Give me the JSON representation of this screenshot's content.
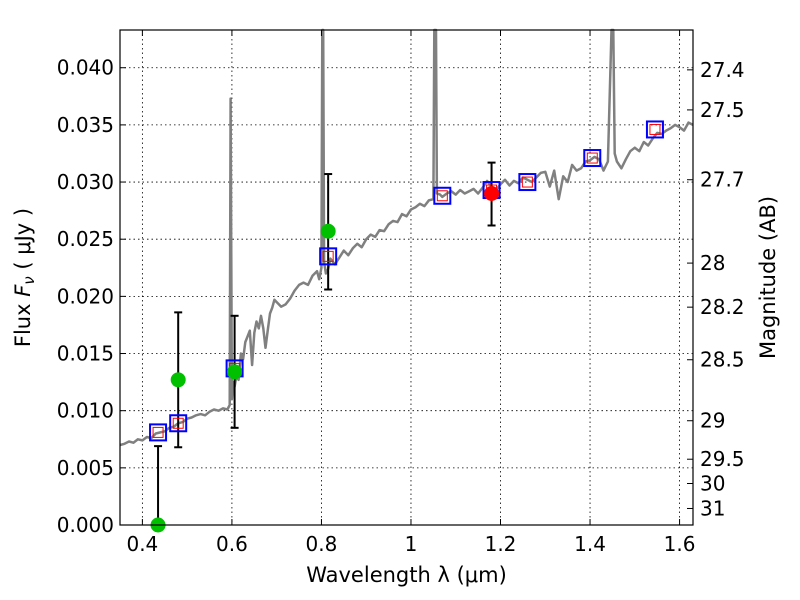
{
  "chart_data": {
    "type": "scatter",
    "xlabel": "Wavelength  λ (μm)",
    "ylabel_main": "Flux  ",
    "ylabel_symbol": "F",
    "ylabel_subscript": "ν",
    "ylabel_unit": "  ( μJy )",
    "y2label": "Magnitude (AB)",
    "xlim": [
      0.35,
      1.63
    ],
    "ylim": [
      0.0,
      0.0433
    ],
    "grid": true,
    "x_ticks": [
      {
        "v": 0.4,
        "label": "0.4"
      },
      {
        "v": 0.6,
        "label": "0.6"
      },
      {
        "v": 0.8,
        "label": "0.8"
      },
      {
        "v": 1.0,
        "label": "1"
      },
      {
        "v": 1.2,
        "label": "1.2"
      },
      {
        "v": 1.4,
        "label": "1.4"
      },
      {
        "v": 1.6,
        "label": "1.6"
      }
    ],
    "y_ticks": [
      {
        "v": 0.0,
        "label": "0.000"
      },
      {
        "v": 0.005,
        "label": "0.005"
      },
      {
        "v": 0.01,
        "label": "0.010"
      },
      {
        "v": 0.015,
        "label": "0.015"
      },
      {
        "v": 0.02,
        "label": "0.020"
      },
      {
        "v": 0.025,
        "label": "0.025"
      },
      {
        "v": 0.03,
        "label": "0.030"
      },
      {
        "v": 0.035,
        "label": "0.035"
      },
      {
        "v": 0.04,
        "label": "0.040"
      }
    ],
    "mag_ticks": [
      {
        "mag": 27.4,
        "label": "27.4"
      },
      {
        "mag": 27.5,
        "label": "27.5"
      },
      {
        "mag": 27.7,
        "label": "27.7"
      },
      {
        "mag": 28.0,
        "label": "28"
      },
      {
        "mag": 28.2,
        "label": "28.2"
      },
      {
        "mag": 28.5,
        "label": "28.5"
      },
      {
        "mag": 29.0,
        "label": "29"
      },
      {
        "mag": 29.5,
        "label": "29.5"
      },
      {
        "mag": 30.0,
        "label": "30"
      },
      {
        "mag": 31.0,
        "label": "31"
      }
    ],
    "colors": {
      "model": "#808080",
      "model_phot": "#0000ff",
      "model_phot_inner": "#ff0000",
      "green": "#00c000",
      "red": "#ff0000",
      "errorbar": "#000000"
    },
    "model_spectrum": [
      [
        0.35,
        0.007
      ],
      [
        0.36,
        0.0071
      ],
      [
        0.37,
        0.0073
      ],
      [
        0.38,
        0.0072
      ],
      [
        0.39,
        0.0075
      ],
      [
        0.4,
        0.0074
      ],
      [
        0.41,
        0.0077
      ],
      [
        0.42,
        0.0076
      ],
      [
        0.43,
        0.008
      ],
      [
        0.44,
        0.0081
      ],
      [
        0.45,
        0.0082
      ],
      [
        0.46,
        0.0085
      ],
      [
        0.47,
        0.0086
      ],
      [
        0.48,
        0.0089
      ],
      [
        0.49,
        0.009
      ],
      [
        0.5,
        0.0093
      ],
      [
        0.51,
        0.0094
      ],
      [
        0.52,
        0.0096
      ],
      [
        0.53,
        0.0097
      ],
      [
        0.54,
        0.0096
      ],
      [
        0.55,
        0.0099
      ],
      [
        0.56,
        0.0101
      ],
      [
        0.57,
        0.01
      ],
      [
        0.58,
        0.0102
      ],
      [
        0.59,
        0.0101
      ],
      [
        0.595,
        0.0105
      ],
      [
        0.597,
        0.0373
      ],
      [
        0.6,
        0.011
      ],
      [
        0.603,
        0.0125
      ],
      [
        0.606,
        0.0121
      ],
      [
        0.61,
        0.013
      ],
      [
        0.615,
        0.0127
      ],
      [
        0.62,
        0.015
      ],
      [
        0.625,
        0.0145
      ],
      [
        0.63,
        0.016
      ],
      [
        0.635,
        0.0165
      ],
      [
        0.64,
        0.017
      ],
      [
        0.645,
        0.014
      ],
      [
        0.65,
        0.0168
      ],
      [
        0.655,
        0.0178
      ],
      [
        0.66,
        0.0172
      ],
      [
        0.665,
        0.0183
      ],
      [
        0.67,
        0.0172
      ],
      [
        0.675,
        0.0155
      ],
      [
        0.68,
        0.017
      ],
      [
        0.685,
        0.0185
      ],
      [
        0.69,
        0.019
      ],
      [
        0.695,
        0.0197
      ],
      [
        0.7,
        0.0195
      ],
      [
        0.71,
        0.0191
      ],
      [
        0.72,
        0.0193
      ],
      [
        0.73,
        0.0198
      ],
      [
        0.74,
        0.0205
      ],
      [
        0.75,
        0.021
      ],
      [
        0.76,
        0.0212
      ],
      [
        0.77,
        0.021
      ],
      [
        0.78,
        0.0218
      ],
      [
        0.79,
        0.0222
      ],
      [
        0.795,
        0.0215
      ],
      [
        0.8,
        0.0225
      ],
      [
        0.802,
        0.0433
      ],
      [
        0.804,
        0.0433
      ],
      [
        0.806,
        0.023
      ],
      [
        0.81,
        0.022
      ],
      [
        0.815,
        0.0224
      ],
      [
        0.82,
        0.0233
      ],
      [
        0.83,
        0.0228
      ],
      [
        0.84,
        0.0234
      ],
      [
        0.85,
        0.024
      ],
      [
        0.86,
        0.0236
      ],
      [
        0.87,
        0.0242
      ],
      [
        0.88,
        0.0246
      ],
      [
        0.89,
        0.0243
      ],
      [
        0.9,
        0.025
      ],
      [
        0.91,
        0.0254
      ],
      [
        0.92,
        0.0252
      ],
      [
        0.93,
        0.0258
      ],
      [
        0.94,
        0.0257
      ],
      [
        0.95,
        0.0263
      ],
      [
        0.96,
        0.0266
      ],
      [
        0.97,
        0.0265
      ],
      [
        0.98,
        0.0272
      ],
      [
        0.99,
        0.027
      ],
      [
        1.0,
        0.0276
      ],
      [
        1.01,
        0.0278
      ],
      [
        1.02,
        0.0281
      ],
      [
        1.03,
        0.0279
      ],
      [
        1.04,
        0.0284
      ],
      [
        1.05,
        0.0285
      ],
      [
        1.052,
        0.0433
      ],
      [
        1.056,
        0.0433
      ],
      [
        1.058,
        0.029
      ],
      [
        1.065,
        0.0289
      ],
      [
        1.07,
        0.0287
      ],
      [
        1.08,
        0.029
      ],
      [
        1.09,
        0.0292
      ],
      [
        1.1,
        0.0289
      ],
      [
        1.11,
        0.0293
      ],
      [
        1.12,
        0.029
      ],
      [
        1.13,
        0.0292
      ],
      [
        1.14,
        0.0294
      ],
      [
        1.15,
        0.029
      ],
      [
        1.16,
        0.0295
      ],
      [
        1.17,
        0.0301
      ],
      [
        1.18,
        0.0296
      ],
      [
        1.19,
        0.0293
      ],
      [
        1.2,
        0.0298
      ],
      [
        1.21,
        0.0302
      ],
      [
        1.22,
        0.0297
      ],
      [
        1.23,
        0.0301
      ],
      [
        1.24,
        0.0299
      ],
      [
        1.25,
        0.0304
      ],
      [
        1.26,
        0.0302
      ],
      [
        1.27,
        0.03
      ],
      [
        1.28,
        0.0304
      ],
      [
        1.29,
        0.0308
      ],
      [
        1.3,
        0.0309
      ],
      [
        1.31,
        0.0296
      ],
      [
        1.32,
        0.031
      ],
      [
        1.33,
        0.0285
      ],
      [
        1.34,
        0.0305
      ],
      [
        1.35,
        0.03
      ],
      [
        1.36,
        0.0315
      ],
      [
        1.37,
        0.031
      ],
      [
        1.38,
        0.0312
      ],
      [
        1.39,
        0.0318
      ],
      [
        1.4,
        0.0319
      ],
      [
        1.41,
        0.0322
      ],
      [
        1.42,
        0.032
      ],
      [
        1.43,
        0.031
      ],
      [
        1.44,
        0.0318
      ],
      [
        1.448,
        0.0433
      ],
      [
        1.452,
        0.0433
      ],
      [
        1.455,
        0.0325
      ],
      [
        1.46,
        0.0318
      ],
      [
        1.47,
        0.0312
      ],
      [
        1.48,
        0.032
      ],
      [
        1.49,
        0.0327
      ],
      [
        1.5,
        0.033
      ],
      [
        1.51,
        0.0327
      ],
      [
        1.52,
        0.0335
      ],
      [
        1.53,
        0.0332
      ],
      [
        1.54,
        0.0338
      ],
      [
        1.55,
        0.0343
      ],
      [
        1.56,
        0.0342
      ],
      [
        1.57,
        0.0345
      ],
      [
        1.58,
        0.0347
      ],
      [
        1.59,
        0.035
      ],
      [
        1.6,
        0.0348
      ],
      [
        1.61,
        0.0345
      ],
      [
        1.62,
        0.0352
      ],
      [
        1.63,
        0.035
      ]
    ],
    "model_photometry": [
      {
        "x": 0.435,
        "y": 0.0081
      },
      {
        "x": 0.48,
        "y": 0.0089
      },
      {
        "x": 0.606,
        "y": 0.0137
      },
      {
        "x": 0.815,
        "y": 0.0235
      },
      {
        "x": 1.07,
        "y": 0.0288
      },
      {
        "x": 1.18,
        "y": 0.0293
      },
      {
        "x": 1.26,
        "y": 0.03
      },
      {
        "x": 1.405,
        "y": 0.0321
      },
      {
        "x": 1.545,
        "y": 0.0346
      }
    ],
    "observed_green": [
      {
        "x": 0.435,
        "y": 0.0,
        "err_low": 0.0,
        "err_high": 0.0069
      },
      {
        "x": 0.48,
        "y": 0.0127,
        "err_low": 0.0068,
        "err_high": 0.0186
      },
      {
        "x": 0.606,
        "y": 0.0134,
        "err_low": 0.0085,
        "err_high": 0.0183
      },
      {
        "x": 0.815,
        "y": 0.0257,
        "err_low": 0.0206,
        "err_high": 0.0307
      }
    ],
    "observed_red": [
      {
        "x": 1.18,
        "y": 0.029,
        "err_low": 0.0262,
        "err_high": 0.0317
      }
    ]
  }
}
